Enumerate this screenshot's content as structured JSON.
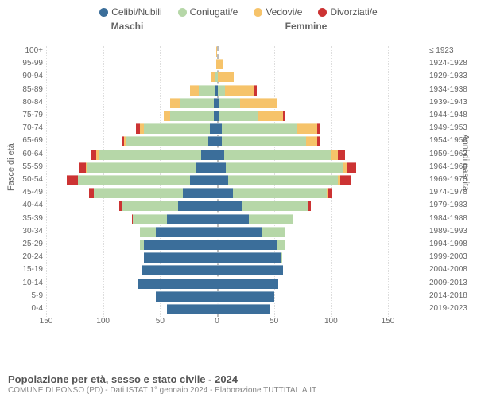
{
  "legend": [
    {
      "label": "Celibi/Nubili",
      "color": "#3b6e9a"
    },
    {
      "label": "Coniugati/e",
      "color": "#b6d7a8"
    },
    {
      "label": "Vedovi/e",
      "color": "#f6c36a"
    },
    {
      "label": "Divorziati/e",
      "color": "#cc3333"
    }
  ],
  "headers": {
    "male": "Maschi",
    "female": "Femmine"
  },
  "axis_left_title": "Fasce di età",
  "axis_right_title": "Anni di nascita",
  "x_ticks": [
    150,
    100,
    50,
    0,
    50,
    100,
    150
  ],
  "x_max": 150,
  "title": "Popolazione per età, sesso e stato civile - 2024",
  "subtitle": "COMUNE DI PONSO (PD) - Dati ISTAT 1° gennaio 2024 - Elaborazione TUTTITALIA.IT",
  "colors": {
    "single": "#3b6e9a",
    "married": "#b6d7a8",
    "widowed": "#f6c36a",
    "divorced": "#cc3333",
    "grid": "#dddddd",
    "centerline": "#bbbbbb",
    "bg": "#ffffff"
  },
  "rows": [
    {
      "age": "100+",
      "birth": "≤ 1923",
      "m": {
        "s": 0,
        "m": 0,
        "w": 1,
        "d": 0
      },
      "f": {
        "s": 0,
        "m": 0,
        "w": 0,
        "d": 0
      }
    },
    {
      "age": "95-99",
      "birth": "1924-1928",
      "m": {
        "s": 0,
        "m": 0,
        "w": 1,
        "d": 0
      },
      "f": {
        "s": 0,
        "m": 0,
        "w": 5,
        "d": 0
      }
    },
    {
      "age": "90-94",
      "birth": "1929-1933",
      "m": {
        "s": 0,
        "m": 2,
        "w": 3,
        "d": 0
      },
      "f": {
        "s": 0,
        "m": 1,
        "w": 14,
        "d": 0
      }
    },
    {
      "age": "85-89",
      "birth": "1934-1938",
      "m": {
        "s": 2,
        "m": 14,
        "w": 8,
        "d": 0
      },
      "f": {
        "s": 1,
        "m": 6,
        "w": 26,
        "d": 2
      }
    },
    {
      "age": "80-84",
      "birth": "1939-1943",
      "m": {
        "s": 3,
        "m": 30,
        "w": 8,
        "d": 0
      },
      "f": {
        "s": 2,
        "m": 18,
        "w": 32,
        "d": 1
      }
    },
    {
      "age": "75-79",
      "birth": "1944-1948",
      "m": {
        "s": 3,
        "m": 38,
        "w": 6,
        "d": 0
      },
      "f": {
        "s": 2,
        "m": 34,
        "w": 22,
        "d": 1
      }
    },
    {
      "age": "70-74",
      "birth": "1949-1953",
      "m": {
        "s": 6,
        "m": 58,
        "w": 4,
        "d": 3
      },
      "f": {
        "s": 4,
        "m": 66,
        "w": 18,
        "d": 2
      }
    },
    {
      "age": "65-69",
      "birth": "1954-1958",
      "m": {
        "s": 8,
        "m": 72,
        "w": 2,
        "d": 2
      },
      "f": {
        "s": 4,
        "m": 74,
        "w": 10,
        "d": 3
      }
    },
    {
      "age": "60-64",
      "birth": "1959-1963",
      "m": {
        "s": 14,
        "m": 90,
        "w": 2,
        "d": 4
      },
      "f": {
        "s": 6,
        "m": 94,
        "w": 6,
        "d": 6
      }
    },
    {
      "age": "55-59",
      "birth": "1964-1968",
      "m": {
        "s": 18,
        "m": 96,
        "w": 1,
        "d": 6
      },
      "f": {
        "s": 8,
        "m": 102,
        "w": 4,
        "d": 8
      }
    },
    {
      "age": "50-54",
      "birth": "1969-1973",
      "m": {
        "s": 24,
        "m": 98,
        "w": 0,
        "d": 10
      },
      "f": {
        "s": 10,
        "m": 96,
        "w": 2,
        "d": 10
      }
    },
    {
      "age": "45-49",
      "birth": "1974-1978",
      "m": {
        "s": 30,
        "m": 78,
        "w": 0,
        "d": 4
      },
      "f": {
        "s": 14,
        "m": 82,
        "w": 1,
        "d": 4
      }
    },
    {
      "age": "40-44",
      "birth": "1979-1983",
      "m": {
        "s": 34,
        "m": 50,
        "w": 0,
        "d": 2
      },
      "f": {
        "s": 22,
        "m": 58,
        "w": 0,
        "d": 2
      }
    },
    {
      "age": "35-39",
      "birth": "1984-1988",
      "m": {
        "s": 44,
        "m": 30,
        "w": 0,
        "d": 1
      },
      "f": {
        "s": 28,
        "m": 38,
        "w": 0,
        "d": 1
      }
    },
    {
      "age": "30-34",
      "birth": "1989-1993",
      "m": {
        "s": 54,
        "m": 14,
        "w": 0,
        "d": 0
      },
      "f": {
        "s": 40,
        "m": 20,
        "w": 0,
        "d": 0
      }
    },
    {
      "age": "25-29",
      "birth": "1994-1998",
      "m": {
        "s": 64,
        "m": 4,
        "w": 0,
        "d": 0
      },
      "f": {
        "s": 52,
        "m": 8,
        "w": 0,
        "d": 0
      }
    },
    {
      "age": "20-24",
      "birth": "1999-2003",
      "m": {
        "s": 64,
        "m": 0,
        "w": 0,
        "d": 0
      },
      "f": {
        "s": 56,
        "m": 1,
        "w": 0,
        "d": 0
      }
    },
    {
      "age": "15-19",
      "birth": "2004-2008",
      "m": {
        "s": 66,
        "m": 0,
        "w": 0,
        "d": 0
      },
      "f": {
        "s": 58,
        "m": 0,
        "w": 0,
        "d": 0
      }
    },
    {
      "age": "10-14",
      "birth": "2009-2013",
      "m": {
        "s": 70,
        "m": 0,
        "w": 0,
        "d": 0
      },
      "f": {
        "s": 54,
        "m": 0,
        "w": 0,
        "d": 0
      }
    },
    {
      "age": "5-9",
      "birth": "2014-2018",
      "m": {
        "s": 54,
        "m": 0,
        "w": 0,
        "d": 0
      },
      "f": {
        "s": 50,
        "m": 0,
        "w": 0,
        "d": 0
      }
    },
    {
      "age": "0-4",
      "birth": "2019-2023",
      "m": {
        "s": 44,
        "m": 0,
        "w": 0,
        "d": 0
      },
      "f": {
        "s": 46,
        "m": 0,
        "w": 0,
        "d": 0
      }
    }
  ]
}
